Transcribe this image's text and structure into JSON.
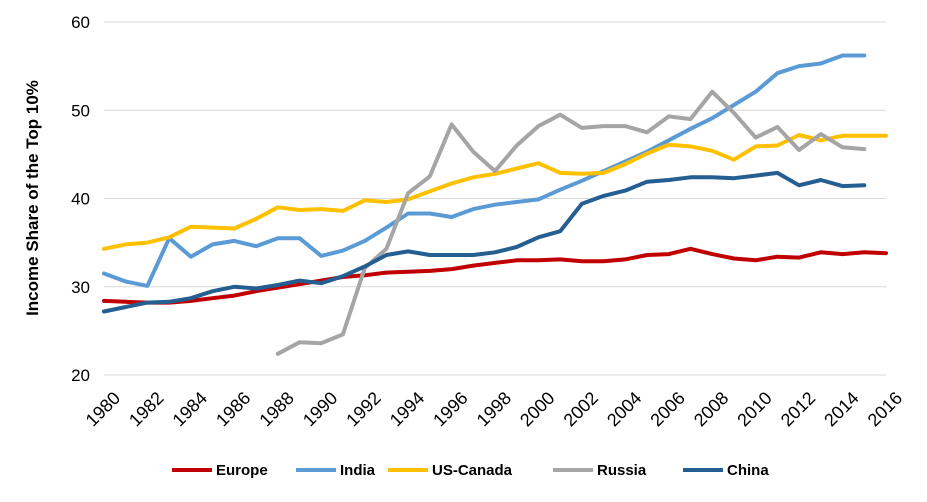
{
  "chart_data": {
    "type": "line",
    "title": "",
    "xlabel": "",
    "ylabel": "Income Share of the Top 10%",
    "ylim": [
      20,
      60
    ],
    "yticks": [
      20,
      30,
      40,
      50,
      60
    ],
    "xticks": [
      1980,
      1982,
      1984,
      1986,
      1988,
      1990,
      1992,
      1994,
      1996,
      1998,
      2000,
      2002,
      2004,
      2006,
      2008,
      2010,
      2012,
      2014,
      2016
    ],
    "xlim": [
      1980,
      2016
    ],
    "grid": "horizontal",
    "legend_position": "bottom",
    "series": [
      {
        "name": "Europe",
        "color": "#C00000",
        "x": [
          1980,
          1981,
          1982,
          1983,
          1984,
          1985,
          1986,
          1987,
          1988,
          1989,
          1990,
          1991,
          1992,
          1993,
          1994,
          1995,
          1996,
          1997,
          1998,
          1999,
          2000,
          2001,
          2002,
          2003,
          2004,
          2005,
          2006,
          2007,
          2008,
          2009,
          2010,
          2011,
          2012,
          2013,
          2014,
          2015,
          2016
        ],
        "values": [
          28.4,
          28.3,
          28.2,
          28.2,
          28.4,
          28.7,
          29.0,
          29.5,
          29.9,
          30.3,
          30.7,
          31.1,
          31.3,
          31.6,
          31.7,
          31.8,
          32.0,
          32.4,
          32.7,
          33.0,
          33.0,
          33.1,
          32.9,
          32.9,
          33.1,
          33.6,
          33.7,
          34.3,
          33.7,
          33.2,
          33.0,
          33.4,
          33.3,
          33.9,
          33.7,
          33.9,
          33.8
        ]
      },
      {
        "name": "India",
        "color": "#5B9BD5",
        "x": [
          1980,
          1981,
          1982,
          1983,
          1984,
          1985,
          1986,
          1987,
          1988,
          1989,
          1990,
          1991,
          1992,
          1993,
          1994,
          1995,
          1996,
          1997,
          1998,
          1999,
          2000,
          2001,
          2002,
          2003,
          2004,
          2005,
          2006,
          2007,
          2008,
          2009,
          2010,
          2011,
          2012,
          2013,
          2014,
          2015
        ],
        "values": [
          31.5,
          30.6,
          30.1,
          35.5,
          33.4,
          34.8,
          35.2,
          34.6,
          35.5,
          35.5,
          33.5,
          34.1,
          35.2,
          36.7,
          38.3,
          38.3,
          37.9,
          38.8,
          39.3,
          39.6,
          39.9,
          41.0,
          42.0,
          43.1,
          44.2,
          45.3,
          46.6,
          47.9,
          49.1,
          50.6,
          52.1,
          54.2,
          55.0,
          55.3,
          56.2,
          56.2
        ]
      },
      {
        "name": "US-Canada",
        "color": "#FFC000",
        "x": [
          1980,
          1981,
          1982,
          1983,
          1984,
          1985,
          1986,
          1987,
          1988,
          1989,
          1990,
          1991,
          1992,
          1993,
          1994,
          1995,
          1996,
          1997,
          1998,
          1999,
          2000,
          2001,
          2002,
          2003,
          2004,
          2005,
          2006,
          2007,
          2008,
          2009,
          2010,
          2011,
          2012,
          2013,
          2014,
          2015,
          2016
        ],
        "values": [
          34.3,
          34.8,
          35.0,
          35.6,
          36.8,
          36.7,
          36.6,
          37.7,
          39.0,
          38.7,
          38.8,
          38.6,
          39.8,
          39.6,
          39.9,
          40.8,
          41.7,
          42.4,
          42.8,
          43.4,
          44.0,
          42.9,
          42.8,
          42.9,
          43.9,
          45.1,
          46.1,
          45.9,
          45.4,
          44.4,
          45.9,
          46.0,
          47.2,
          46.6,
          47.1,
          47.1,
          47.1
        ]
      },
      {
        "name": "Russia",
        "color": "#A5A5A5",
        "x": [
          1988,
          1989,
          1990,
          1991,
          1992,
          1993,
          1994,
          1995,
          1996,
          1997,
          1998,
          1999,
          2000,
          2001,
          2002,
          2003,
          2004,
          2005,
          2006,
          2007,
          2008,
          2009,
          2010,
          2011,
          2012,
          2013,
          2014,
          2015
        ],
        "values": [
          22.4,
          23.7,
          23.6,
          24.6,
          32.1,
          34.3,
          40.6,
          42.5,
          48.4,
          45.3,
          43.1,
          46.0,
          48.2,
          49.5,
          48.0,
          48.2,
          48.2,
          47.5,
          49.3,
          49.0,
          52.1,
          49.7,
          46.9,
          48.1,
          45.5,
          47.3,
          45.8,
          45.6
        ]
      },
      {
        "name": "China",
        "color": "#255E91",
        "x": [
          1980,
          1981,
          1982,
          1983,
          1984,
          1985,
          1986,
          1987,
          1988,
          1989,
          1990,
          1991,
          1992,
          1993,
          1994,
          1995,
          1996,
          1997,
          1998,
          1999,
          2000,
          2001,
          2002,
          2003,
          2004,
          2005,
          2006,
          2007,
          2008,
          2009,
          2010,
          2011,
          2012,
          2013,
          2014,
          2015
        ],
        "values": [
          27.2,
          27.7,
          28.2,
          28.3,
          28.7,
          29.5,
          30.0,
          29.8,
          30.2,
          30.7,
          30.4,
          31.2,
          32.3,
          33.6,
          34.0,
          33.6,
          33.6,
          33.6,
          33.9,
          34.5,
          35.6,
          36.3,
          39.4,
          40.3,
          40.9,
          41.9,
          42.1,
          42.4,
          42.4,
          42.3,
          42.6,
          42.9,
          41.5,
          42.1,
          41.4,
          41.5
        ]
      }
    ]
  }
}
